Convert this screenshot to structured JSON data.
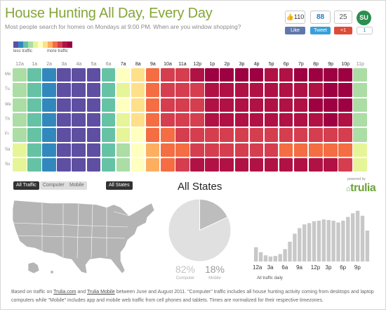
{
  "header": {
    "title": "House Hunting All Day, Every Day",
    "subtitle": "Most people search for homes on Mondays at 9:00 PM. When are you window shopping?"
  },
  "legend": {
    "low_label": "less traffic",
    "high_label": "more traffic",
    "colors": [
      "#5e4fa2",
      "#3288bd",
      "#66c2a5",
      "#abdda4",
      "#e6f598",
      "#ffffbf",
      "#fee08b",
      "#fdae61",
      "#f46d43",
      "#d53e4f",
      "#b01246",
      "#9e0142"
    ]
  },
  "social": {
    "fb_count": "110",
    "fb_label": "Like",
    "tw_count": "88",
    "tw_label": "Tweet",
    "gp_count": "25",
    "gp_label": "+1",
    "su_icon_text": "SU",
    "su_count": "1"
  },
  "heatmap": {
    "hours": [
      "12a",
      "1a",
      "2a",
      "3a",
      "4a",
      "5a",
      "6a",
      "7a",
      "8a",
      "9a",
      "10a",
      "11a",
      "12p",
      "1p",
      "2p",
      "3p",
      "4p",
      "5p",
      "6p",
      "7p",
      "8p",
      "9p",
      "10p",
      "11p"
    ],
    "days": [
      "Mo",
      "Tu",
      "We",
      "Th",
      "Fr",
      "Sa",
      "Su"
    ],
    "active_hour_range": [
      7,
      22
    ],
    "levels": [
      [
        3,
        2,
        1,
        0,
        0,
        0,
        2,
        5,
        6,
        8,
        9,
        9,
        10,
        11,
        11,
        11,
        11,
        10,
        10,
        11,
        11,
        11,
        11,
        3
      ],
      [
        3,
        2,
        1,
        0,
        0,
        0,
        2,
        4,
        6,
        8,
        9,
        9,
        9,
        10,
        10,
        10,
        10,
        10,
        10,
        10,
        10,
        11,
        11,
        3
      ],
      [
        3,
        2,
        1,
        0,
        0,
        0,
        2,
        5,
        6,
        8,
        9,
        9,
        9,
        10,
        10,
        10,
        10,
        10,
        10,
        10,
        11,
        11,
        11,
        3
      ],
      [
        3,
        2,
        1,
        0,
        0,
        0,
        2,
        4,
        6,
        8,
        9,
        9,
        9,
        10,
        10,
        10,
        10,
        10,
        10,
        10,
        10,
        11,
        10,
        3
      ],
      [
        3,
        2,
        1,
        0,
        0,
        0,
        2,
        4,
        5,
        8,
        8,
        9,
        9,
        9,
        9,
        9,
        9,
        9,
        9,
        9,
        9,
        9,
        9,
        3
      ],
      [
        4,
        2,
        1,
        0,
        0,
        0,
        2,
        3,
        5,
        7,
        8,
        8,
        9,
        9,
        9,
        9,
        9,
        9,
        8,
        8,
        8,
        8,
        8,
        4
      ],
      [
        4,
        2,
        1,
        0,
        0,
        0,
        2,
        3,
        5,
        7,
        8,
        9,
        10,
        10,
        10,
        10,
        10,
        10,
        10,
        10,
        10,
        10,
        9,
        4
      ]
    ]
  },
  "filters": {
    "all_traffic": "All Traffic",
    "computer": "Computer",
    "mobile": "Mobile",
    "all_states": "All States"
  },
  "region_title": "All States",
  "brand": {
    "powered_by": "powered by",
    "logo": "trulia"
  },
  "pie": {
    "computer_pct": 82,
    "mobile_pct": 18,
    "computer_label": "82%",
    "mobile_label": "18%",
    "computer_caption": "Computer",
    "mobile_caption": "Mobile"
  },
  "daily": {
    "caption": "All traffic daily",
    "tick_labels": [
      "12a",
      "3a",
      "6a",
      "9a",
      "12p",
      "3p",
      "6p",
      "9p"
    ],
    "values": [
      23,
      15,
      10,
      8,
      9,
      12,
      20,
      32,
      45,
      54,
      60,
      62,
      65,
      66,
      68,
      67,
      66,
      63,
      66,
      72,
      78,
      82,
      74,
      50
    ]
  },
  "footer": {
    "text_1": "Based on traffic on ",
    "link_1": "Trulia.com",
    "text_2": " and ",
    "link_2": "Trulia Mobile",
    "text_3": " between June and August 2011. \"Computer\" traffic includes all house hunting activity coming from desktops and laptop computers while \"Mobile\" includes app and mobile web traffic from cell phones and tablets. Times are normalized for their respective timezones."
  }
}
